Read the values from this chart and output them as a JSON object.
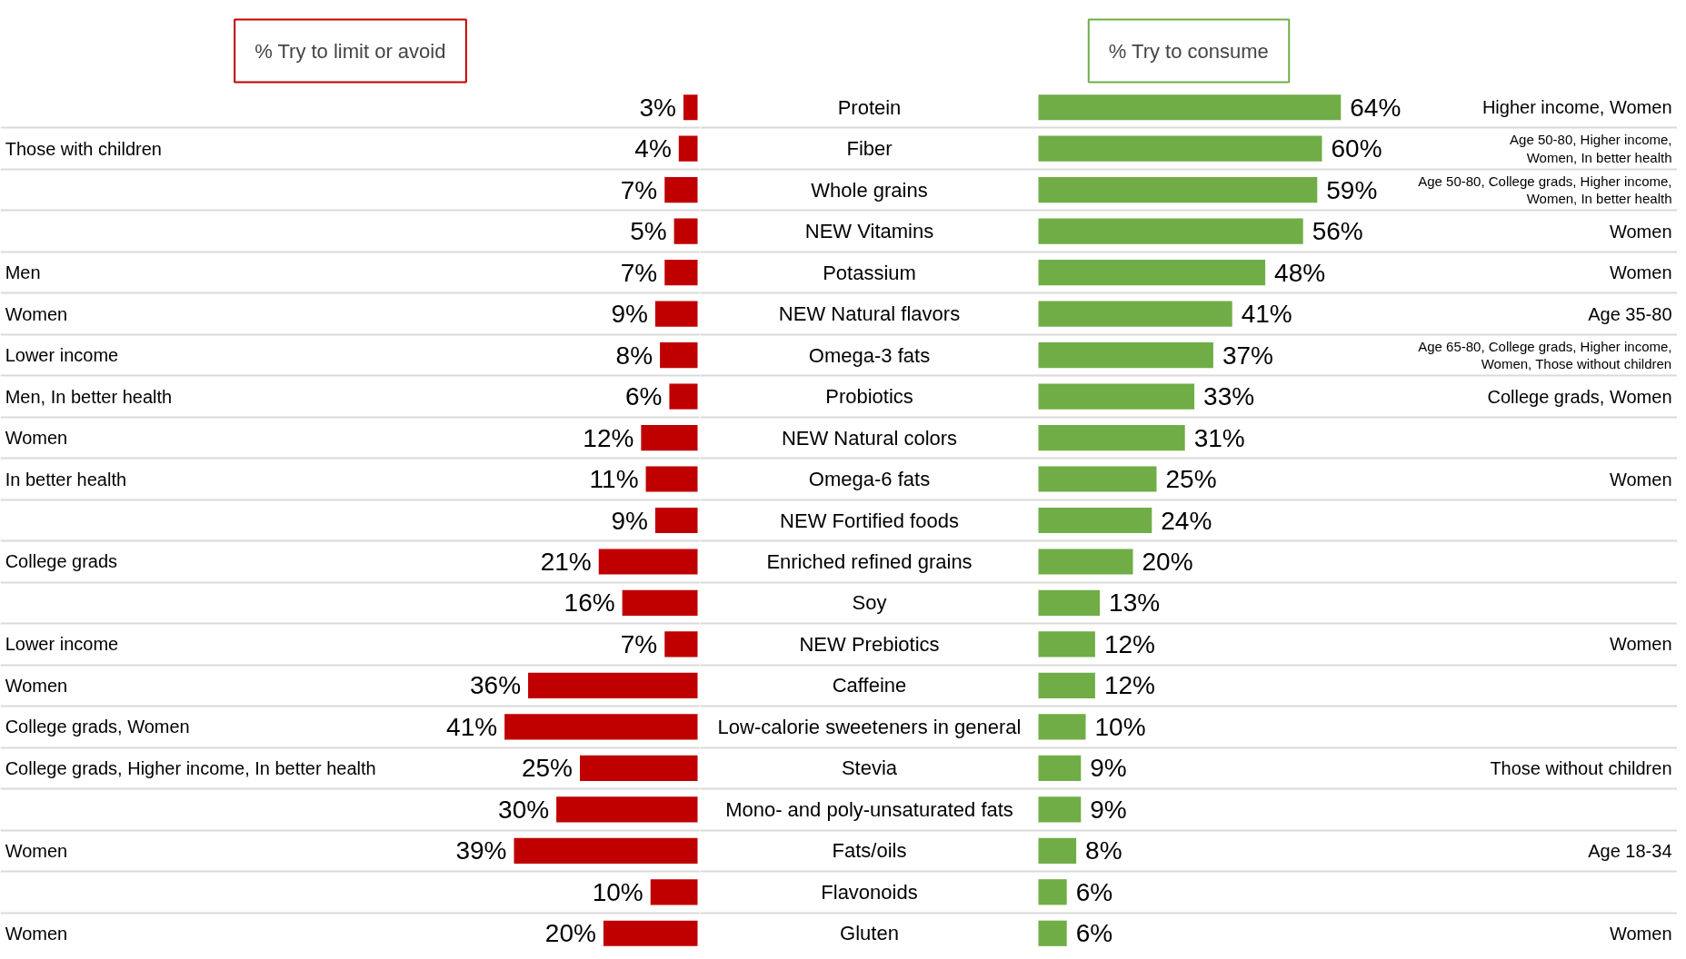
{
  "chart_data": [
    {
      "type": "bar",
      "orientation": "horizontal",
      "title": "% Try to limit or avoid",
      "color": "#c00000",
      "grid": "y",
      "categories": [
        null,
        "Those with children",
        null,
        null,
        "Men",
        "Women",
        "Lower income",
        "Men, In better health",
        "Women",
        "In better health",
        null,
        "College grads",
        null,
        "Lower income",
        "Women",
        "College grads, Women",
        "College grads, Higher income, In better health",
        null,
        "Women",
        null,
        "Women"
      ],
      "values": [
        3,
        4,
        7,
        5,
        7,
        9,
        8,
        6,
        12,
        11,
        9,
        21,
        16,
        7,
        36,
        41,
        25,
        30,
        39,
        10,
        20
      ],
      "value_labels": [
        "3%",
        "4%",
        "7%",
        "5%",
        "7%",
        "9%",
        "8%",
        "6%",
        "12%",
        "11%",
        "9%",
        "21%",
        "16%",
        "7%",
        "36%",
        "41%",
        "25%",
        "30%",
        "39%",
        "10%",
        "20%"
      ]
    },
    {
      "type": "bar",
      "orientation": "horizontal",
      "title": "% Try to consume",
      "color": "#70ad47",
      "grid": "y",
      "categories": [
        "Protein",
        "Fiber",
        "Whole grains",
        "NEW Vitamins",
        "Potassium",
        "NEW Natural flavors",
        "Omega-3 fats",
        "Probiotics",
        "NEW Natural colors",
        "Omega-6 fats",
        "NEW Fortified foods",
        "Enriched refined grains",
        "Soy",
        "NEW Prebiotics",
        "Caffeine",
        "Low-calorie sweeteners in general",
        "Stevia",
        "Mono- and poly-unsaturated fats",
        "Fats/oils",
        "Flavonoids",
        "Gluten"
      ],
      "y2_categories": [
        "Higher income, Women",
        "Age 50-80, Higher income,\nWomen, In better health",
        "Age 50-80, College grads, Higher income,\nWomen, In better health",
        "Women",
        "Women",
        "Age 35-80",
        "Age 65-80, College grads, Higher income,\nWomen, Those without children",
        "College grads, Women",
        null,
        "Women",
        null,
        null,
        null,
        "Women",
        null,
        null,
        "Those without children",
        null,
        "Age 18-34",
        null,
        "Women"
      ],
      "values": [
        64,
        60,
        59,
        56,
        48,
        41,
        37,
        33,
        31,
        25,
        24,
        20,
        13,
        12,
        12,
        10,
        9,
        9,
        8,
        6,
        6
      ],
      "value_labels": [
        "64%",
        "60%",
        "59%",
        "56%",
        "48%",
        "41%",
        "37%",
        "33%",
        "31%",
        "25%",
        "24%",
        "20%",
        "13%",
        "12%",
        "12%",
        "10%",
        "9%",
        "9%",
        "8%",
        "6%",
        "6%"
      ]
    }
  ]
}
